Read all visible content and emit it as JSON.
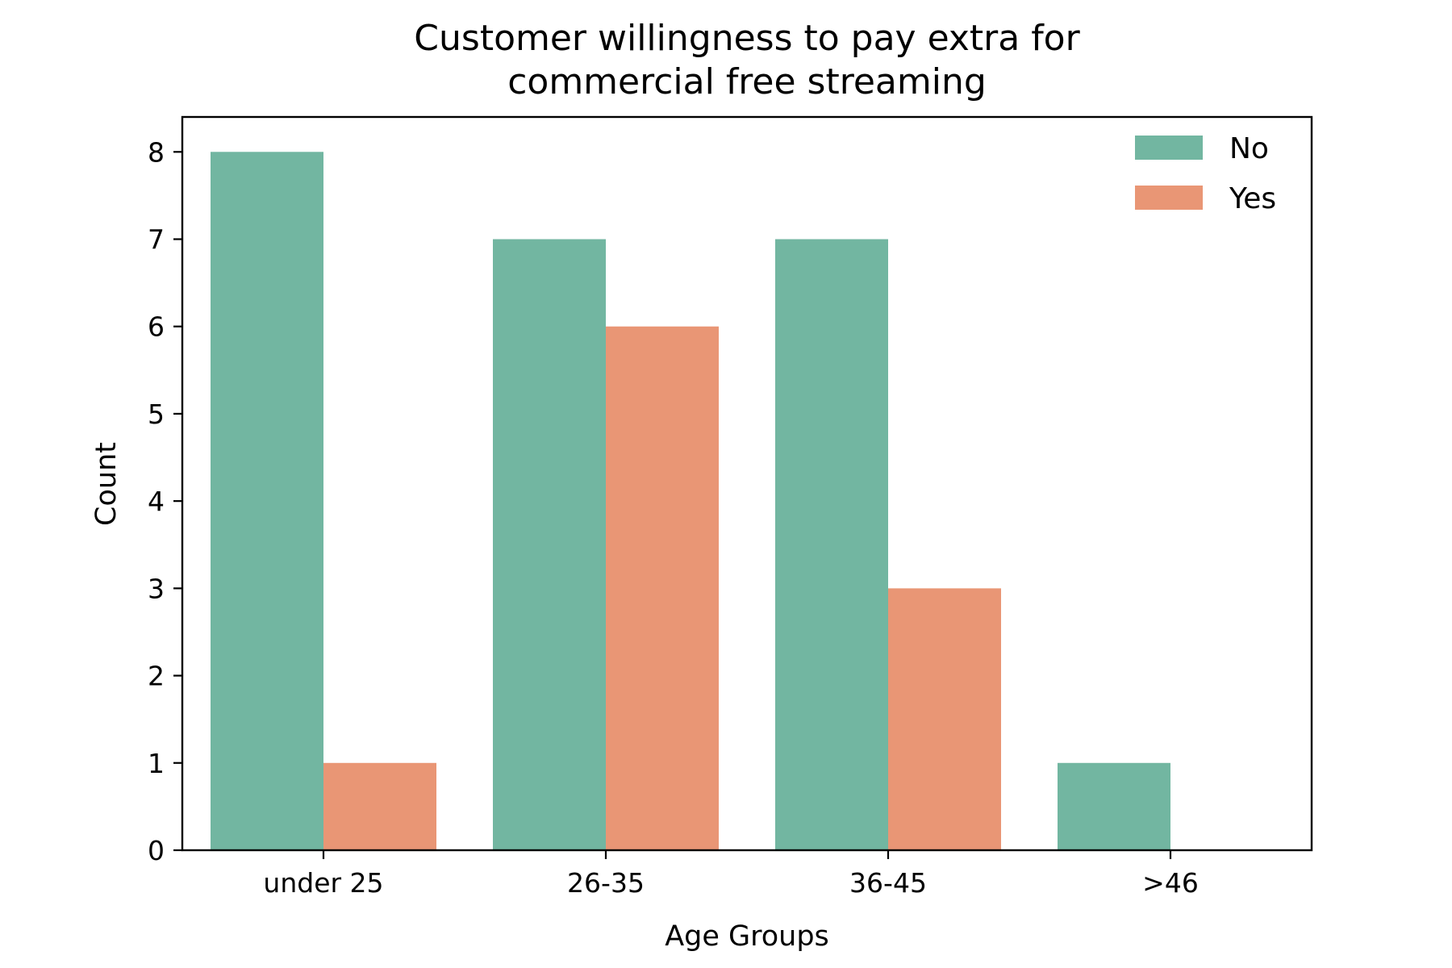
{
  "chart_data": {
    "type": "bar",
    "title": [
      "Customer willingness to pay extra for",
      "commercial free streaming"
    ],
    "xlabel": "Age Groups",
    "ylabel": "Count",
    "categories": [
      "under 25",
      "26-35",
      "36-45",
      ">46"
    ],
    "series": [
      {
        "name": "No",
        "values": [
          8,
          7,
          7,
          1
        ],
        "color": "#72b6a1"
      },
      {
        "name": "Yes",
        "values": [
          1,
          6,
          3,
          0
        ],
        "color": "#e99675"
      }
    ],
    "ylim": [
      0,
      8.4
    ],
    "yticks": [
      0,
      1,
      2,
      3,
      4,
      5,
      6,
      7,
      8
    ],
    "grid": false,
    "legend_position": "top-right"
  }
}
